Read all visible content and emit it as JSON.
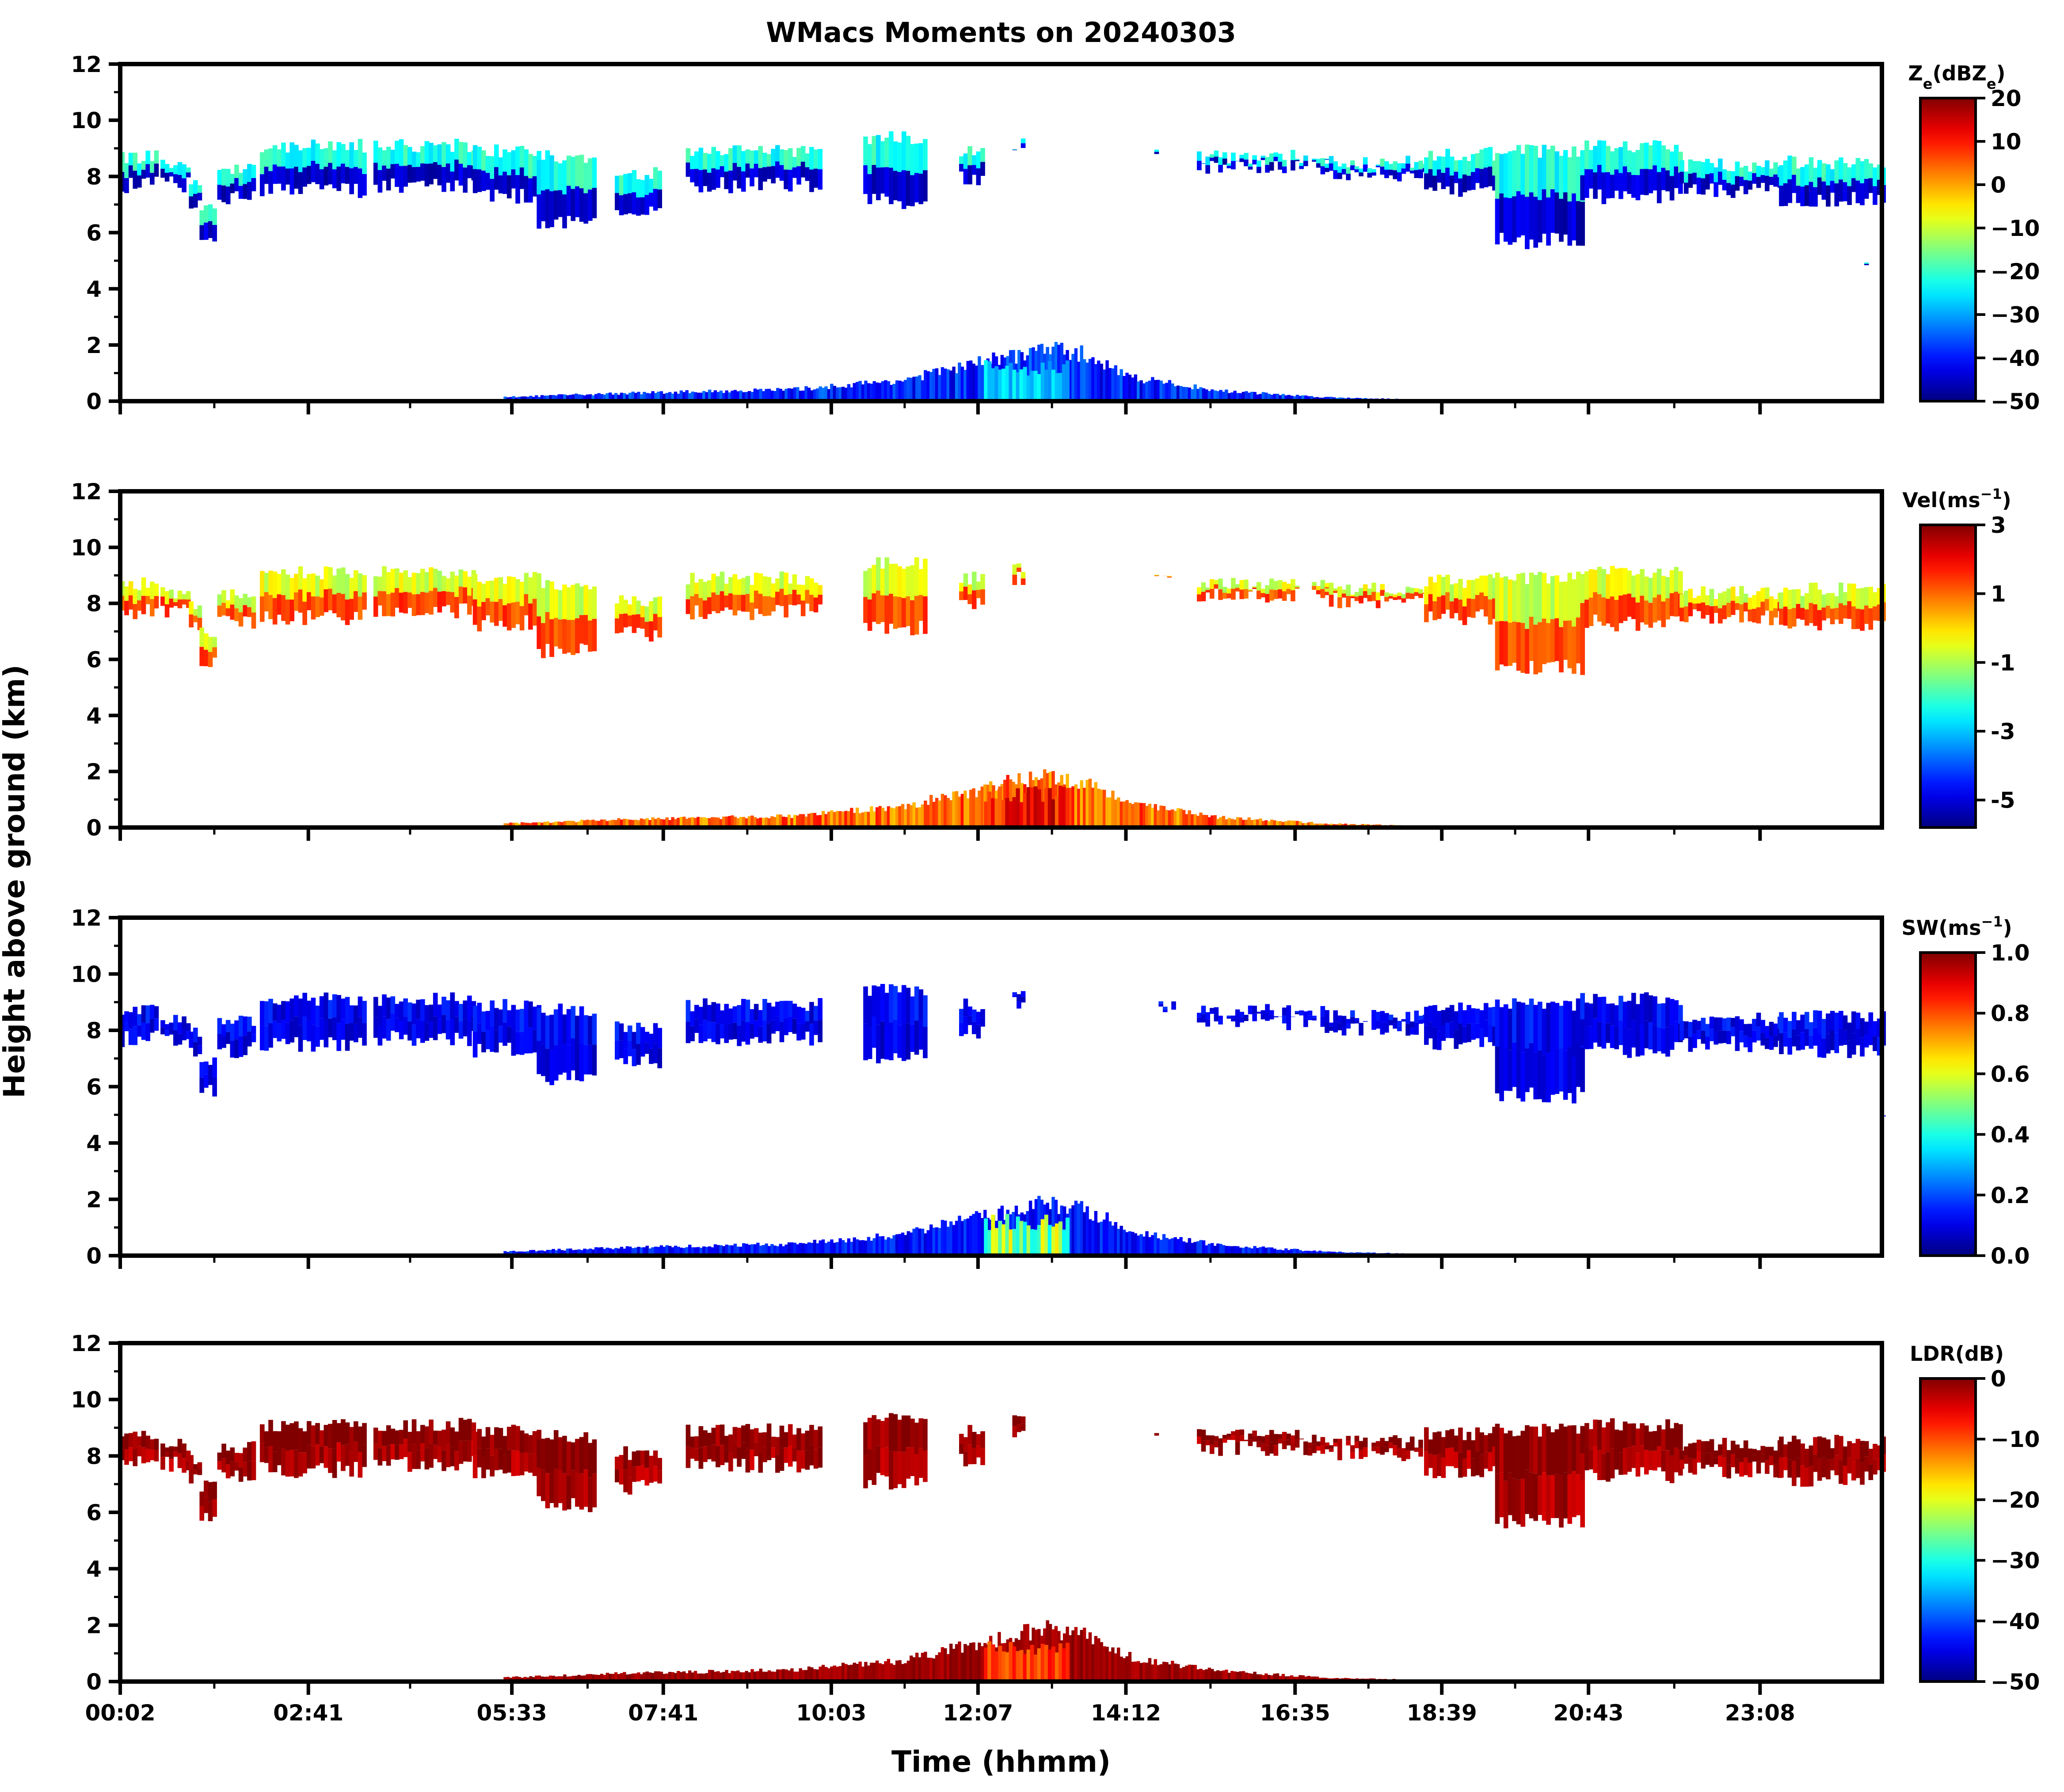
{
  "chart_data": {
    "type": "heatmap",
    "title": "WMacs Moments on 20240303",
    "xlabel": "Time (hhmm)",
    "ylabel": "Height above ground (km)",
    "x_ticks": [
      "00:02",
      "02:41",
      "05:33",
      "07:41",
      "10:03",
      "12:07",
      "14:12",
      "16:35",
      "18:39",
      "20:43",
      "23:08"
    ],
    "x_range_hours": [
      0.033,
      24.85
    ],
    "y_ticks": [
      0,
      2,
      4,
      6,
      8,
      10,
      12
    ],
    "ylim": [
      0,
      12
    ],
    "panels": [
      {
        "colorbar_label": "Z",
        "colorbar_label_sub": "e",
        "colorbar_label_unit_prefix": "(dBZ",
        "colorbar_label_unit_sub": "e",
        "colorbar_label_unit_suffix": ")",
        "range": [
          -50,
          20
        ],
        "ticks": [
          "20",
          "10",
          "0",
          "−10",
          "−20",
          "−30",
          "−40",
          "−50"
        ],
        "tick_values": [
          20,
          10,
          0,
          -10,
          -20,
          -30,
          -40,
          -50
        ],
        "cloud_upper_value": -22,
        "cloud_lower_value": -45
      },
      {
        "colorbar_label": "Vel(ms",
        "colorbar_label_sup": "−1",
        "colorbar_label_suffix": ")",
        "range": [
          -5.8,
          3
        ],
        "ticks": [
          "3",
          "1",
          "-1",
          "-3",
          "-5"
        ],
        "tick_values": [
          3,
          1,
          -1,
          -3,
          -5
        ],
        "cloud_upper_value": -0.6,
        "cloud_lower_value": 1.3
      },
      {
        "colorbar_label": "SW(ms",
        "colorbar_label_sup": "−1",
        "colorbar_label_suffix": ")",
        "range": [
          0,
          1
        ],
        "ticks": [
          "1.0",
          "0.8",
          "0.6",
          "0.4",
          "0.2",
          "0.0"
        ],
        "tick_values": [
          1.0,
          0.8,
          0.6,
          0.4,
          0.2,
          0.0
        ],
        "cloud_upper_value": 0.12,
        "cloud_lower_value": 0.1
      },
      {
        "colorbar_label": "LDR(dB)",
        "range": [
          -50,
          0
        ],
        "ticks": [
          "0",
          "−10",
          "−20",
          "−30",
          "−40",
          "−50"
        ],
        "tick_values": [
          0,
          -10,
          -20,
          -30,
          -40,
          -50
        ],
        "cloud_upper_value": 0,
        "cloud_lower_value": -2
      }
    ],
    "upper_cloud_segments": [
      {
        "t0": 0.03,
        "t1": 0.55,
        "base": 7.4,
        "top": 8.8
      },
      {
        "t0": 0.6,
        "t1": 1.0,
        "base": 7.4,
        "top": 8.5
      },
      {
        "t0": 1.0,
        "t1": 1.15,
        "base": 6.8,
        "top": 8.0
      },
      {
        "t0": 1.15,
        "t1": 1.35,
        "base": 5.5,
        "top": 7.0
      },
      {
        "t0": 1.4,
        "t1": 1.9,
        "base": 7.0,
        "top": 8.4
      },
      {
        "t0": 2.0,
        "t1": 3.5,
        "base": 7.2,
        "top": 9.2
      },
      {
        "t0": 3.6,
        "t1": 5.0,
        "base": 7.4,
        "top": 9.2
      },
      {
        "t0": 5.0,
        "t1": 5.9,
        "base": 7.0,
        "top": 9.0
      },
      {
        "t0": 5.9,
        "t1": 6.7,
        "base": 6.0,
        "top": 8.8
      },
      {
        "t0": 7.0,
        "t1": 7.6,
        "base": 6.6,
        "top": 8.2
      },
      {
        "t0": 8.0,
        "t1": 9.9,
        "base": 7.4,
        "top": 9.0
      },
      {
        "t0": 10.5,
        "t1": 11.4,
        "base": 6.8,
        "top": 9.5
      },
      {
        "t0": 11.85,
        "t1": 12.2,
        "base": 7.6,
        "top": 9.0
      },
      {
        "t0": 12.6,
        "t1": 12.75,
        "base": 8.6,
        "top": 9.3
      },
      {
        "t0": 14.6,
        "t1": 14.9,
        "base": 8.6,
        "top": 8.9
      },
      {
        "t0": 15.2,
        "t1": 17.0,
        "base": 8.0,
        "top": 8.8
      },
      {
        "t0": 17.0,
        "t1": 18.4,
        "base": 7.8,
        "top": 8.6
      },
      {
        "t0": 18.4,
        "t1": 19.4,
        "base": 7.2,
        "top": 8.9
      },
      {
        "t0": 19.4,
        "t1": 20.6,
        "base": 5.4,
        "top": 9.0
      },
      {
        "t0": 20.6,
        "t1": 22.0,
        "base": 7.0,
        "top": 9.2
      },
      {
        "t0": 22.0,
        "t1": 23.4,
        "base": 7.2,
        "top": 8.5
      },
      {
        "t0": 23.4,
        "t1": 24.85,
        "base": 6.9,
        "top": 8.6
      },
      {
        "t0": 24.6,
        "t1": 24.85,
        "base": 4.7,
        "top": 4.9
      }
    ],
    "low_echo_profile": [
      {
        "t": 5.4,
        "h": 0.15
      },
      {
        "t": 7.0,
        "h": 0.3
      },
      {
        "t": 9.5,
        "h": 0.45
      },
      {
        "t": 11.0,
        "h": 0.8
      },
      {
        "t": 12.0,
        "h": 1.4
      },
      {
        "t": 13.0,
        "h": 2.0
      },
      {
        "t": 13.6,
        "h": 1.8
      },
      {
        "t": 14.3,
        "h": 0.9
      },
      {
        "t": 15.5,
        "h": 0.4
      },
      {
        "t": 17.0,
        "h": 0.15
      },
      {
        "t": 18.5,
        "h": 0.05
      }
    ],
    "core_window": {
      "t0": 12.2,
      "t1": 13.4,
      "top": 1.5
    }
  }
}
